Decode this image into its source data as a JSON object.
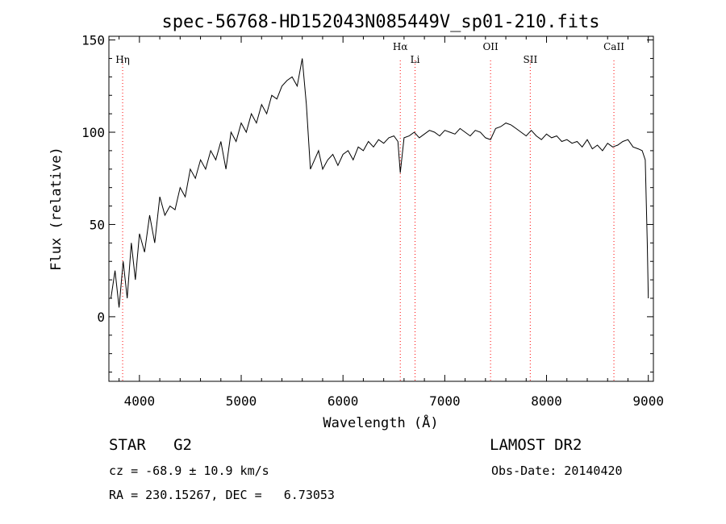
{
  "chart_data": {
    "type": "line",
    "title": "spec-56768-HD152043N085449V_sp01-210.fits",
    "xlabel": "Wavelength (Å)",
    "ylabel": "Flux (relative)",
    "xlim": [
      3700,
      9050
    ],
    "ylim": [
      -35,
      152
    ],
    "xticks": [
      4000,
      5000,
      6000,
      7000,
      8000,
      9000
    ],
    "yticks": [
      0,
      50,
      100,
      150
    ],
    "grid": false,
    "legend": "none",
    "line_color": "#000000",
    "marker_color": "#ff0000",
    "spectral_lines": [
      {
        "label": "Hη",
        "wavelength": 3835
      },
      {
        "label": "Hα",
        "wavelength": 6563
      },
      {
        "label": "Li",
        "wavelength": 6708
      },
      {
        "label": "OII",
        "wavelength": 7450
      },
      {
        "label": "SII",
        "wavelength": 7840
      },
      {
        "label": "CaII",
        "wavelength": 8662
      }
    ],
    "series": [
      {
        "x": [
          3720,
          3760,
          3800,
          3840,
          3880,
          3920,
          3960,
          4000,
          4050,
          4100,
          4150,
          4200,
          4250,
          4300,
          4350,
          4400,
          4450,
          4500,
          4550,
          4600,
          4650,
          4700,
          4750,
          4800,
          4850,
          4900,
          4950,
          5000,
          5050,
          5100,
          5150,
          5200,
          5250,
          5300,
          5350,
          5400,
          5450,
          5500,
          5550,
          5600,
          5640,
          5680,
          5720,
          5760,
          5800,
          5850,
          5900,
          5950,
          6000,
          6050,
          6100,
          6150,
          6200,
          6250,
          6300,
          6350,
          6400,
          6450,
          6500,
          6540,
          6563,
          6600,
          6650,
          6700,
          6750,
          6800,
          6850,
          6900,
          6950,
          7000,
          7050,
          7100,
          7150,
          7200,
          7250,
          7300,
          7350,
          7400,
          7450,
          7500,
          7550,
          7600,
          7650,
          7700,
          7750,
          7800,
          7850,
          7900,
          7950,
          8000,
          8050,
          8100,
          8150,
          8200,
          8250,
          8300,
          8350,
          8400,
          8450,
          8500,
          8550,
          8600,
          8650,
          8700,
          8750,
          8800,
          8850,
          8900,
          8940,
          8970,
          8990,
          9000
        ],
        "y": [
          10,
          25,
          5,
          30,
          10,
          40,
          20,
          45,
          35,
          55,
          40,
          65,
          55,
          60,
          58,
          70,
          65,
          80,
          75,
          85,
          80,
          90,
          85,
          95,
          80,
          100,
          95,
          105,
          100,
          110,
          105,
          115,
          110,
          120,
          118,
          125,
          128,
          130,
          125,
          140,
          115,
          80,
          85,
          90,
          80,
          85,
          88,
          82,
          88,
          90,
          85,
          92,
          90,
          95,
          92,
          96,
          94,
          97,
          98,
          95,
          78,
          97,
          98,
          100,
          97,
          99,
          101,
          100,
          98,
          101,
          100,
          99,
          102,
          100,
          98,
          101,
          100,
          97,
          96,
          102,
          103,
          105,
          104,
          102,
          100,
          98,
          101,
          98,
          96,
          99,
          97,
          98,
          95,
          96,
          94,
          95,
          92,
          96,
          91,
          93,
          90,
          94,
          92,
          93,
          95,
          96,
          92,
          91,
          90,
          85,
          40,
          10
        ]
      }
    ]
  },
  "info": {
    "class_line": "STAR   G2",
    "survey": "LAMOST DR2",
    "cz": "cz = -68.9 ± 10.9 km/s",
    "obs_date": "Obs-Date: 20140420",
    "coords": "RA = 230.15267, DEC =   6.73053"
  }
}
